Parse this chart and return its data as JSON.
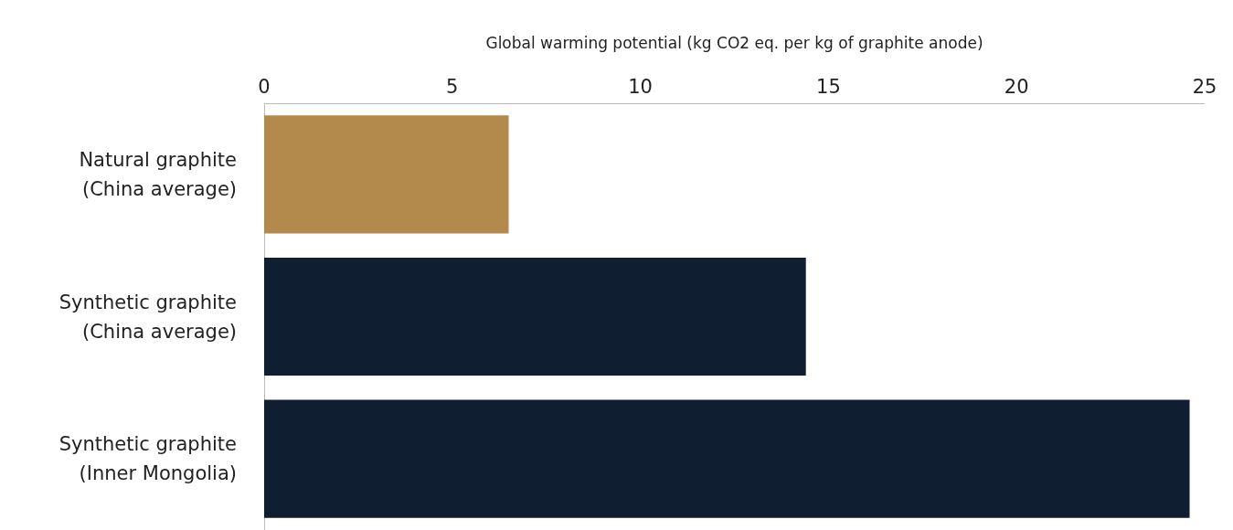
{
  "chart_data": {
    "type": "bar",
    "orientation": "horizontal",
    "xlabel": "Global warming potential (kg CO2 eq. per kg of graphite anode)",
    "categories": [
      "Natural graphite\n(China average)",
      "Synthetic graphite\n(China average)",
      "Synthetic graphite\n(Inner Mongolia)"
    ],
    "values": [
      6.5,
      14.4,
      24.6
    ],
    "colors": [
      "#b38a4b",
      "#0f1f31",
      "#0f1f31"
    ],
    "xlim": [
      0,
      25
    ],
    "xticks": [
      0,
      5,
      10,
      15,
      20,
      25
    ],
    "grid": false
  }
}
